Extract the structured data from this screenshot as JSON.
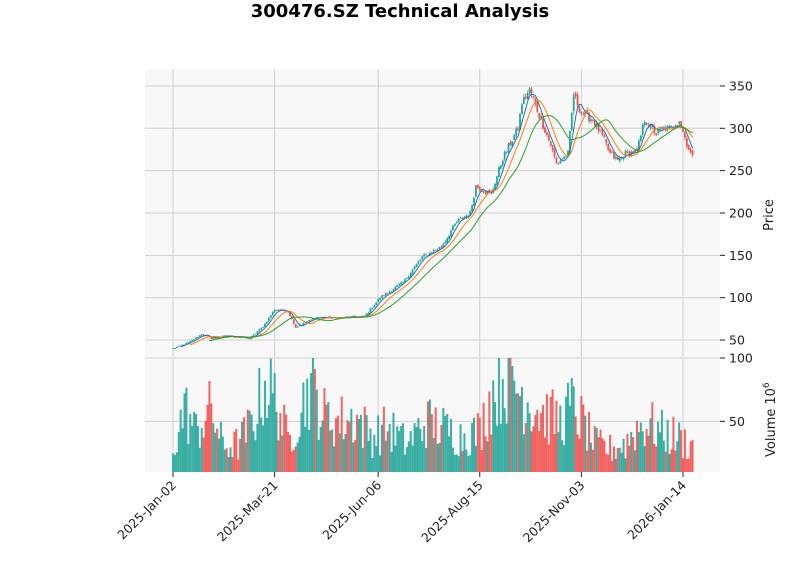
{
  "chart_data": {
    "type": "candlestick",
    "title": "300476.SZ Technical Analysis",
    "price_panel": {
      "ylabel": "Price",
      "yticks": [
        50,
        100,
        150,
        200,
        250,
        300,
        350
      ],
      "ylim": [
        30,
        370
      ],
      "moving_average_colors": [
        "#1f77b4",
        "#ff7f0e",
        "#2ca02c"
      ]
    },
    "volume_panel": {
      "ylabel": "Volume",
      "ylabel_exponent": "6",
      "yticks": [
        50,
        100
      ],
      "ylim": [
        10,
        100
      ]
    },
    "x_tick_labels": [
      "2025-Jan-02",
      "2025-Mar-21",
      "2025-Jun-06",
      "2025-Aug-15",
      "2025-Nov-03",
      "2026-Jan-14"
    ],
    "x_tick_index": [
      0,
      53,
      107,
      160,
      213,
      266
    ],
    "n_bars": 272,
    "up_color": "#26a69a",
    "down_color": "#ef5350",
    "price_anchors": [
      {
        "i": 0,
        "close": 40
      },
      {
        "i": 8,
        "close": 47
      },
      {
        "i": 15,
        "close": 57
      },
      {
        "i": 20,
        "close": 52
      },
      {
        "i": 28,
        "close": 55
      },
      {
        "i": 40,
        "close": 52
      },
      {
        "i": 47,
        "close": 66
      },
      {
        "i": 53,
        "close": 86
      },
      {
        "i": 60,
        "close": 84
      },
      {
        "i": 64,
        "close": 65
      },
      {
        "i": 70,
        "close": 72
      },
      {
        "i": 75,
        "close": 77
      },
      {
        "i": 85,
        "close": 76
      },
      {
        "i": 100,
        "close": 78
      },
      {
        "i": 108,
        "close": 100
      },
      {
        "i": 120,
        "close": 118
      },
      {
        "i": 130,
        "close": 148
      },
      {
        "i": 140,
        "close": 160
      },
      {
        "i": 148,
        "close": 190
      },
      {
        "i": 155,
        "close": 200
      },
      {
        "i": 158,
        "close": 232
      },
      {
        "i": 166,
        "close": 222
      },
      {
        "i": 172,
        "close": 265
      },
      {
        "i": 180,
        "close": 300
      },
      {
        "i": 182,
        "close": 330
      },
      {
        "i": 186,
        "close": 345
      },
      {
        "i": 192,
        "close": 310
      },
      {
        "i": 197,
        "close": 280
      },
      {
        "i": 200,
        "close": 258
      },
      {
        "i": 206,
        "close": 270
      },
      {
        "i": 209,
        "close": 340
      },
      {
        "i": 213,
        "close": 318
      },
      {
        "i": 219,
        "close": 310
      },
      {
        "i": 224,
        "close": 290
      },
      {
        "i": 228,
        "close": 270
      },
      {
        "i": 232,
        "close": 262
      },
      {
        "i": 236,
        "close": 270
      },
      {
        "i": 242,
        "close": 272
      },
      {
        "i": 246,
        "close": 310
      },
      {
        "i": 252,
        "close": 294
      },
      {
        "i": 256,
        "close": 300
      },
      {
        "i": 260,
        "close": 300
      },
      {
        "i": 264,
        "close": 310
      },
      {
        "i": 268,
        "close": 282
      },
      {
        "i": 271,
        "close": 265
      }
    ],
    "volume_anchors": [
      {
        "i": 0,
        "v": 28
      },
      {
        "i": 6,
        "v": 60
      },
      {
        "i": 12,
        "v": 42
      },
      {
        "i": 20,
        "v": 60
      },
      {
        "i": 26,
        "v": 30
      },
      {
        "i": 34,
        "v": 32
      },
      {
        "i": 42,
        "v": 50
      },
      {
        "i": 48,
        "v": 80
      },
      {
        "i": 54,
        "v": 66
      },
      {
        "i": 60,
        "v": 34
      },
      {
        "i": 68,
        "v": 65
      },
      {
        "i": 72,
        "v": 80
      },
      {
        "i": 78,
        "v": 55
      },
      {
        "i": 86,
        "v": 50
      },
      {
        "i": 96,
        "v": 52
      },
      {
        "i": 104,
        "v": 38
      },
      {
        "i": 112,
        "v": 45
      },
      {
        "i": 122,
        "v": 32
      },
      {
        "i": 132,
        "v": 50
      },
      {
        "i": 140,
        "v": 45
      },
      {
        "i": 150,
        "v": 38
      },
      {
        "i": 160,
        "v": 42
      },
      {
        "i": 166,
        "v": 70
      },
      {
        "i": 172,
        "v": 85
      },
      {
        "i": 178,
        "v": 80
      },
      {
        "i": 186,
        "v": 65
      },
      {
        "i": 194,
        "v": 55
      },
      {
        "i": 202,
        "v": 50
      },
      {
        "i": 208,
        "v": 62
      },
      {
        "i": 214,
        "v": 48
      },
      {
        "i": 220,
        "v": 32
      },
      {
        "i": 228,
        "v": 28
      },
      {
        "i": 236,
        "v": 32
      },
      {
        "i": 242,
        "v": 45
      },
      {
        "i": 248,
        "v": 48
      },
      {
        "i": 256,
        "v": 40
      },
      {
        "i": 262,
        "v": 38
      },
      {
        "i": 268,
        "v": 33
      },
      {
        "i": 271,
        "v": 30
      }
    ]
  }
}
